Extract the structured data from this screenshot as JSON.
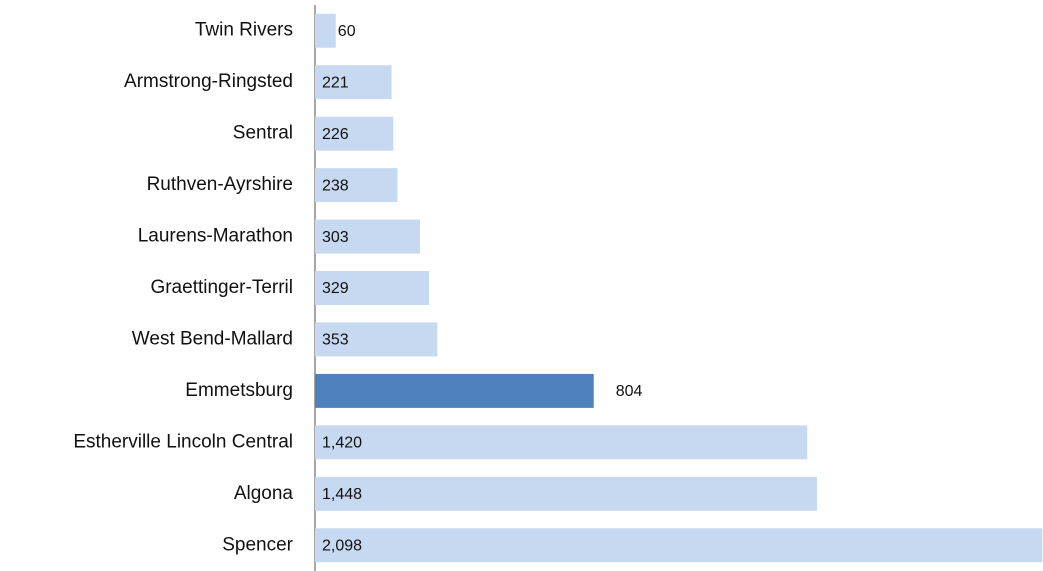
{
  "chart_data": {
    "type": "barh",
    "categories": [
      "Twin Rivers",
      "Armstrong-Ringsted",
      "Sentral",
      "Ruthven-Ayrshire",
      "Laurens-Marathon",
      "Graettinger-Terril",
      "West Bend-Mallard",
      "Emmetsburg",
      "Estherville Lincoln Central",
      "Algona",
      "Spencer"
    ],
    "values": [
      60,
      221,
      226,
      238,
      303,
      329,
      353,
      804,
      1420,
      1448,
      2098
    ],
    "value_labels": [
      "60",
      "221",
      "226",
      "238",
      "303",
      "329",
      "353",
      "804",
      "1,420",
      "1,448",
      "2,098"
    ],
    "colors": [
      "#c6d9f1",
      "#c6d9f1",
      "#c6d9f1",
      "#c6d9f1",
      "#c6d9f1",
      "#c6d9f1",
      "#c6d9f1",
      "#4f81bd",
      "#c6d9f1",
      "#c6d9f1",
      "#c6d9f1"
    ],
    "xlim": [
      0,
      2100
    ]
  }
}
